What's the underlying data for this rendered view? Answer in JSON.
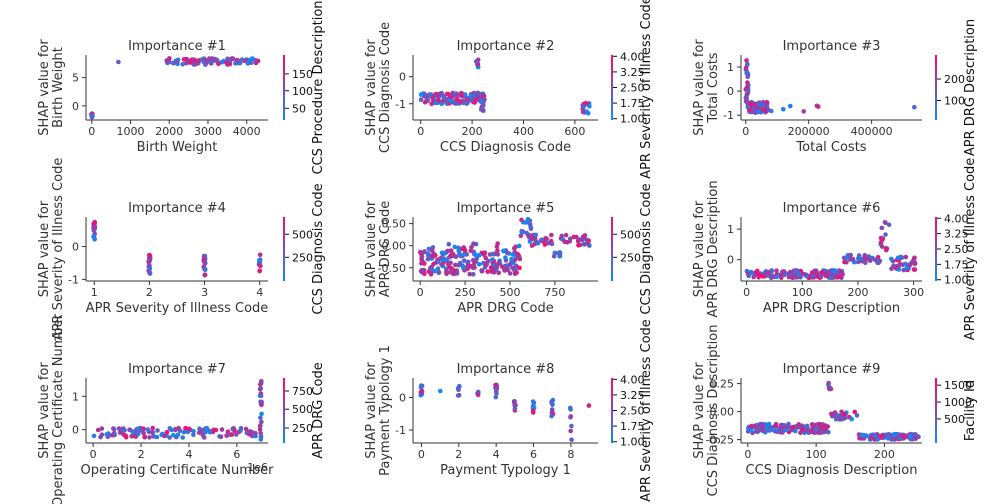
{
  "chart_data": [
    {
      "type": "scatter",
      "title": "Importance #1",
      "xlabel": "Birth Weight",
      "ylabel": [
        "SHAP value for",
        "Birth Weight"
      ],
      "xlim": [
        -150,
        4550
      ],
      "ylim": [
        -2.5,
        9
      ],
      "xticks": [
        0,
        1000,
        2000,
        3000,
        4000
      ],
      "yticks": [
        0,
        5
      ],
      "colorbar": {
        "label": "CCS Procedure Description",
        "ticks": [
          "50",
          "100",
          "150"
        ],
        "positions": [
          0.18,
          0.45,
          0.71
        ]
      },
      "clusters": [
        {
          "x": [
            0,
            0
          ],
          "y": [
            -2.2,
            -1.2
          ],
          "n": 8
        },
        {
          "x": [
            680,
            720
          ],
          "y": [
            7.7,
            7.9
          ],
          "n": 1
        },
        {
          "x": [
            1900,
            4300
          ],
          "y": [
            7.3,
            8.4
          ],
          "n": 90
        }
      ]
    },
    {
      "type": "scatter",
      "title": "Importance #2",
      "xlabel": "CCS Diagnosis Code",
      "ylabel": [
        "SHAP value for",
        "CCS Diagnosis Code"
      ],
      "xlim": [
        -30,
        690
      ],
      "ylim": [
        -1.6,
        0.8
      ],
      "xticks": [
        0,
        200,
        400,
        600
      ],
      "yticks": [
        -1,
        0
      ],
      "colorbar": {
        "label": "APR Severity of Illness Code",
        "ticks": [
          "1.00",
          "1.75",
          "2.50",
          "3.25",
          "4.00"
        ],
        "positions": [
          0.02,
          0.26,
          0.5,
          0.74,
          0.98
        ]
      },
      "clusters": [
        {
          "x": [
            0,
            250
          ],
          "y": [
            -1.0,
            -0.6
          ],
          "n": 130
        },
        {
          "x": [
            215,
            225
          ],
          "y": [
            0.35,
            0.75
          ],
          "n": 6
        },
        {
          "x": [
            235,
            250
          ],
          "y": [
            -1.3,
            -0.9
          ],
          "n": 10
        },
        {
          "x": [
            630,
            660
          ],
          "y": [
            -1.35,
            -0.85
          ],
          "n": 16
        }
      ]
    },
    {
      "type": "scatter",
      "title": "Importance #3",
      "xlabel": "Total Costs",
      "ylabel": [
        "SHAP value for",
        "Total Costs"
      ],
      "xlim": [
        -15000,
        560000
      ],
      "ylim": [
        -1.2,
        1.5
      ],
      "xticks": [
        0,
        200000,
        400000
      ],
      "yticks": [
        -1,
        0,
        1
      ],
      "colorbar": {
        "label": "APR DRG Description",
        "ticks": [
          "100",
          "200"
        ],
        "positions": [
          0.3,
          0.63
        ]
      },
      "clusters": [
        {
          "x": [
            0,
            8000
          ],
          "y": [
            -0.5,
            1.4
          ],
          "n": 30
        },
        {
          "x": [
            5000,
            70000
          ],
          "y": [
            -0.9,
            -0.45
          ],
          "n": 90
        },
        {
          "x": [
            70000,
            240000
          ],
          "y": [
            -0.85,
            -0.55
          ],
          "n": 7
        },
        {
          "x": [
            530000,
            540000
          ],
          "y": [
            -0.7,
            -0.65
          ],
          "n": 1
        }
      ]
    },
    {
      "type": "scatter",
      "title": "Importance #4",
      "xlabel": "APR Severity of Illness Code",
      "ylabel": [
        "SHAP value for",
        "APR Severity of Illness Code"
      ],
      "xlim": [
        0.85,
        4.15
      ],
      "ylim": [
        -1.05,
        0.9
      ],
      "xticks": [
        1,
        2,
        3,
        4
      ],
      "yticks": [
        -1,
        0
      ],
      "colorbar": {
        "label": "CCS Diagnosis Code",
        "ticks": [
          "250",
          "500"
        ],
        "positions": [
          0.37,
          0.73
        ]
      },
      "clusters": [
        {
          "x": [
            1,
            1
          ],
          "y": [
            0.2,
            0.8
          ],
          "n": 18
        },
        {
          "x": [
            2,
            2
          ],
          "y": [
            -0.85,
            -0.25
          ],
          "n": 22
        },
        {
          "x": [
            3,
            3
          ],
          "y": [
            -0.95,
            -0.25
          ],
          "n": 22
        },
        {
          "x": [
            4,
            4
          ],
          "y": [
            -0.8,
            -0.25
          ],
          "n": 12
        }
      ]
    },
    {
      "type": "scatter",
      "title": "Importance #5",
      "xlabel": "APR DRG Code",
      "ylabel": [
        "SHAP value for",
        "APR DRG Code"
      ],
      "xlim": [
        -40,
        990
      ],
      "ylim": [
        -0.8,
        0.65
      ],
      "xticks": [
        0,
        250,
        500,
        750
      ],
      "yticks": [
        -0.5,
        0.0,
        0.5
      ],
      "colorbar": {
        "label": "CCS Diagnosis Code",
        "ticks": [
          "250",
          "500"
        ],
        "positions": [
          0.37,
          0.73
        ]
      },
      "clusters": [
        {
          "x": [
            0,
            560
          ],
          "y": [
            -0.65,
            -0.1
          ],
          "n": 200
        },
        {
          "x": [
            20,
            560
          ],
          "y": [
            -0.2,
            0.05
          ],
          "n": 20
        },
        {
          "x": [
            560,
            620
          ],
          "y": [
            0.2,
            0.6
          ],
          "n": 16
        },
        {
          "x": [
            600,
            950
          ],
          "y": [
            0.0,
            0.25
          ],
          "n": 50
        },
        {
          "x": [
            740,
            780
          ],
          "y": [
            -0.25,
            -0.15
          ],
          "n": 8
        }
      ]
    },
    {
      "type": "scatter",
      "title": "Importance #6",
      "xlabel": "APR DRG Description",
      "ylabel": [
        "SHAP value for",
        "APR DRG Description"
      ],
      "xlim": [
        -10,
        315
      ],
      "ylim": [
        -0.7,
        1.4
      ],
      "xticks": [
        0,
        100,
        200,
        300
      ],
      "yticks": [
        0,
        1
      ],
      "colorbar": {
        "label": "APR Severity of Illness Code",
        "ticks": [
          "1.00",
          "1.75",
          "2.50",
          "3.25",
          "4.00"
        ],
        "positions": [
          0.02,
          0.26,
          0.5,
          0.74,
          0.98
        ]
      },
      "clusters": [
        {
          "x": [
            0,
            175
          ],
          "y": [
            -0.6,
            -0.35
          ],
          "n": 150
        },
        {
          "x": [
            175,
            240
          ],
          "y": [
            -0.1,
            0.15
          ],
          "n": 40
        },
        {
          "x": [
            240,
            258
          ],
          "y": [
            0.3,
            1.3
          ],
          "n": 14
        },
        {
          "x": [
            258,
            305
          ],
          "y": [
            -0.35,
            0.1
          ],
          "n": 35
        }
      ]
    },
    {
      "type": "scatter",
      "title": "Importance #7",
      "xlabel": "Operating Certificate Number",
      "ylabel": [
        "SHAP value for",
        "Operating Certificate Number"
      ],
      "xlim": [
        -0.3,
        7.3
      ],
      "ylim": [
        -0.4,
        1.55
      ],
      "xticks": [
        0,
        2,
        4,
        6
      ],
      "yticks": [
        0,
        1
      ],
      "xoffset": "1e6",
      "colorbar": {
        "label": "APR DRG Code",
        "ticks": [
          "250",
          "500",
          "750"
        ],
        "positions": [
          0.23,
          0.52,
          0.8
        ]
      },
      "clusters": [
        {
          "x": [
            0,
            6.8
          ],
          "y": [
            -0.25,
            0.05
          ],
          "n": 120
        },
        {
          "x": [
            7,
            7
          ],
          "y": [
            -0.3,
            1.5
          ],
          "n": 25
        }
      ]
    },
    {
      "type": "scatter",
      "title": "Importance #8",
      "xlabel": "Payment Typology 1",
      "ylabel": [
        "SHAP value for",
        "Payment Typology 1"
      ],
      "xlim": [
        -0.45,
        9.45
      ],
      "ylim": [
        -1.4,
        0.6
      ],
      "xticks": [
        0,
        2,
        4,
        6,
        8
      ],
      "yticks": [
        -1,
        0
      ],
      "colorbar": {
        "label": "APR Severity of Illness Code",
        "ticks": [
          "1.00",
          "1.75",
          "2.50",
          "3.25",
          "4.00"
        ],
        "positions": [
          0.02,
          0.26,
          0.5,
          0.74,
          0.98
        ]
      },
      "clusters": [
        {
          "x": [
            0,
            0
          ],
          "y": [
            0.05,
            0.4
          ],
          "n": 8
        },
        {
          "x": [
            1,
            1
          ],
          "y": [
            0.2,
            0.2
          ],
          "n": 1
        },
        {
          "x": [
            2,
            2
          ],
          "y": [
            0.0,
            0.35
          ],
          "n": 6
        },
        {
          "x": [
            3,
            3
          ],
          "y": [
            0.05,
            0.2
          ],
          "n": 4
        },
        {
          "x": [
            4,
            4
          ],
          "y": [
            0.0,
            0.45
          ],
          "n": 10
        },
        {
          "x": [
            5,
            5
          ],
          "y": [
            -0.5,
            -0.1
          ],
          "n": 8
        },
        {
          "x": [
            6,
            6
          ],
          "y": [
            -0.5,
            -0.1
          ],
          "n": 8
        },
        {
          "x": [
            7,
            7
          ],
          "y": [
            -0.6,
            -0.05
          ],
          "n": 10
        },
        {
          "x": [
            8,
            8
          ],
          "y": [
            -1.3,
            -0.2
          ],
          "n": 7
        },
        {
          "x": [
            9,
            9
          ],
          "y": [
            -0.25,
            -0.25
          ],
          "n": 1
        }
      ]
    },
    {
      "type": "scatter",
      "title": "Importance #9",
      "xlabel": "CCS Diagnosis Description",
      "ylabel": [
        "SHAP value for",
        "CCS Diagnosis Description"
      ],
      "xlim": [
        -10,
        255
      ],
      "ylim": [
        -0.28,
        0.3
      ],
      "xticks": [
        0,
        100,
        200
      ],
      "yticks": [
        -0.25,
        0.0,
        0.25
      ],
      "colorbar": {
        "label": "Facility Id",
        "ticks": [
          "500",
          "1000",
          "1500"
        ],
        "positions": [
          0.37,
          0.63,
          0.89
        ]
      },
      "clusters": [
        {
          "x": [
            0,
            118
          ],
          "y": [
            -0.19,
            -0.11
          ],
          "n": 140
        },
        {
          "x": [
            118,
            122
          ],
          "y": [
            0.2,
            0.26
          ],
          "n": 6
        },
        {
          "x": [
            122,
            160
          ],
          "y": [
            -0.07,
            0.0
          ],
          "n": 30
        },
        {
          "x": [
            160,
            250
          ],
          "y": [
            -0.25,
            -0.2
          ],
          "n": 110
        }
      ]
    }
  ],
  "colors": {
    "low": "#0a8cfa",
    "high": "#fa0a6e",
    "axis": "#333333"
  }
}
